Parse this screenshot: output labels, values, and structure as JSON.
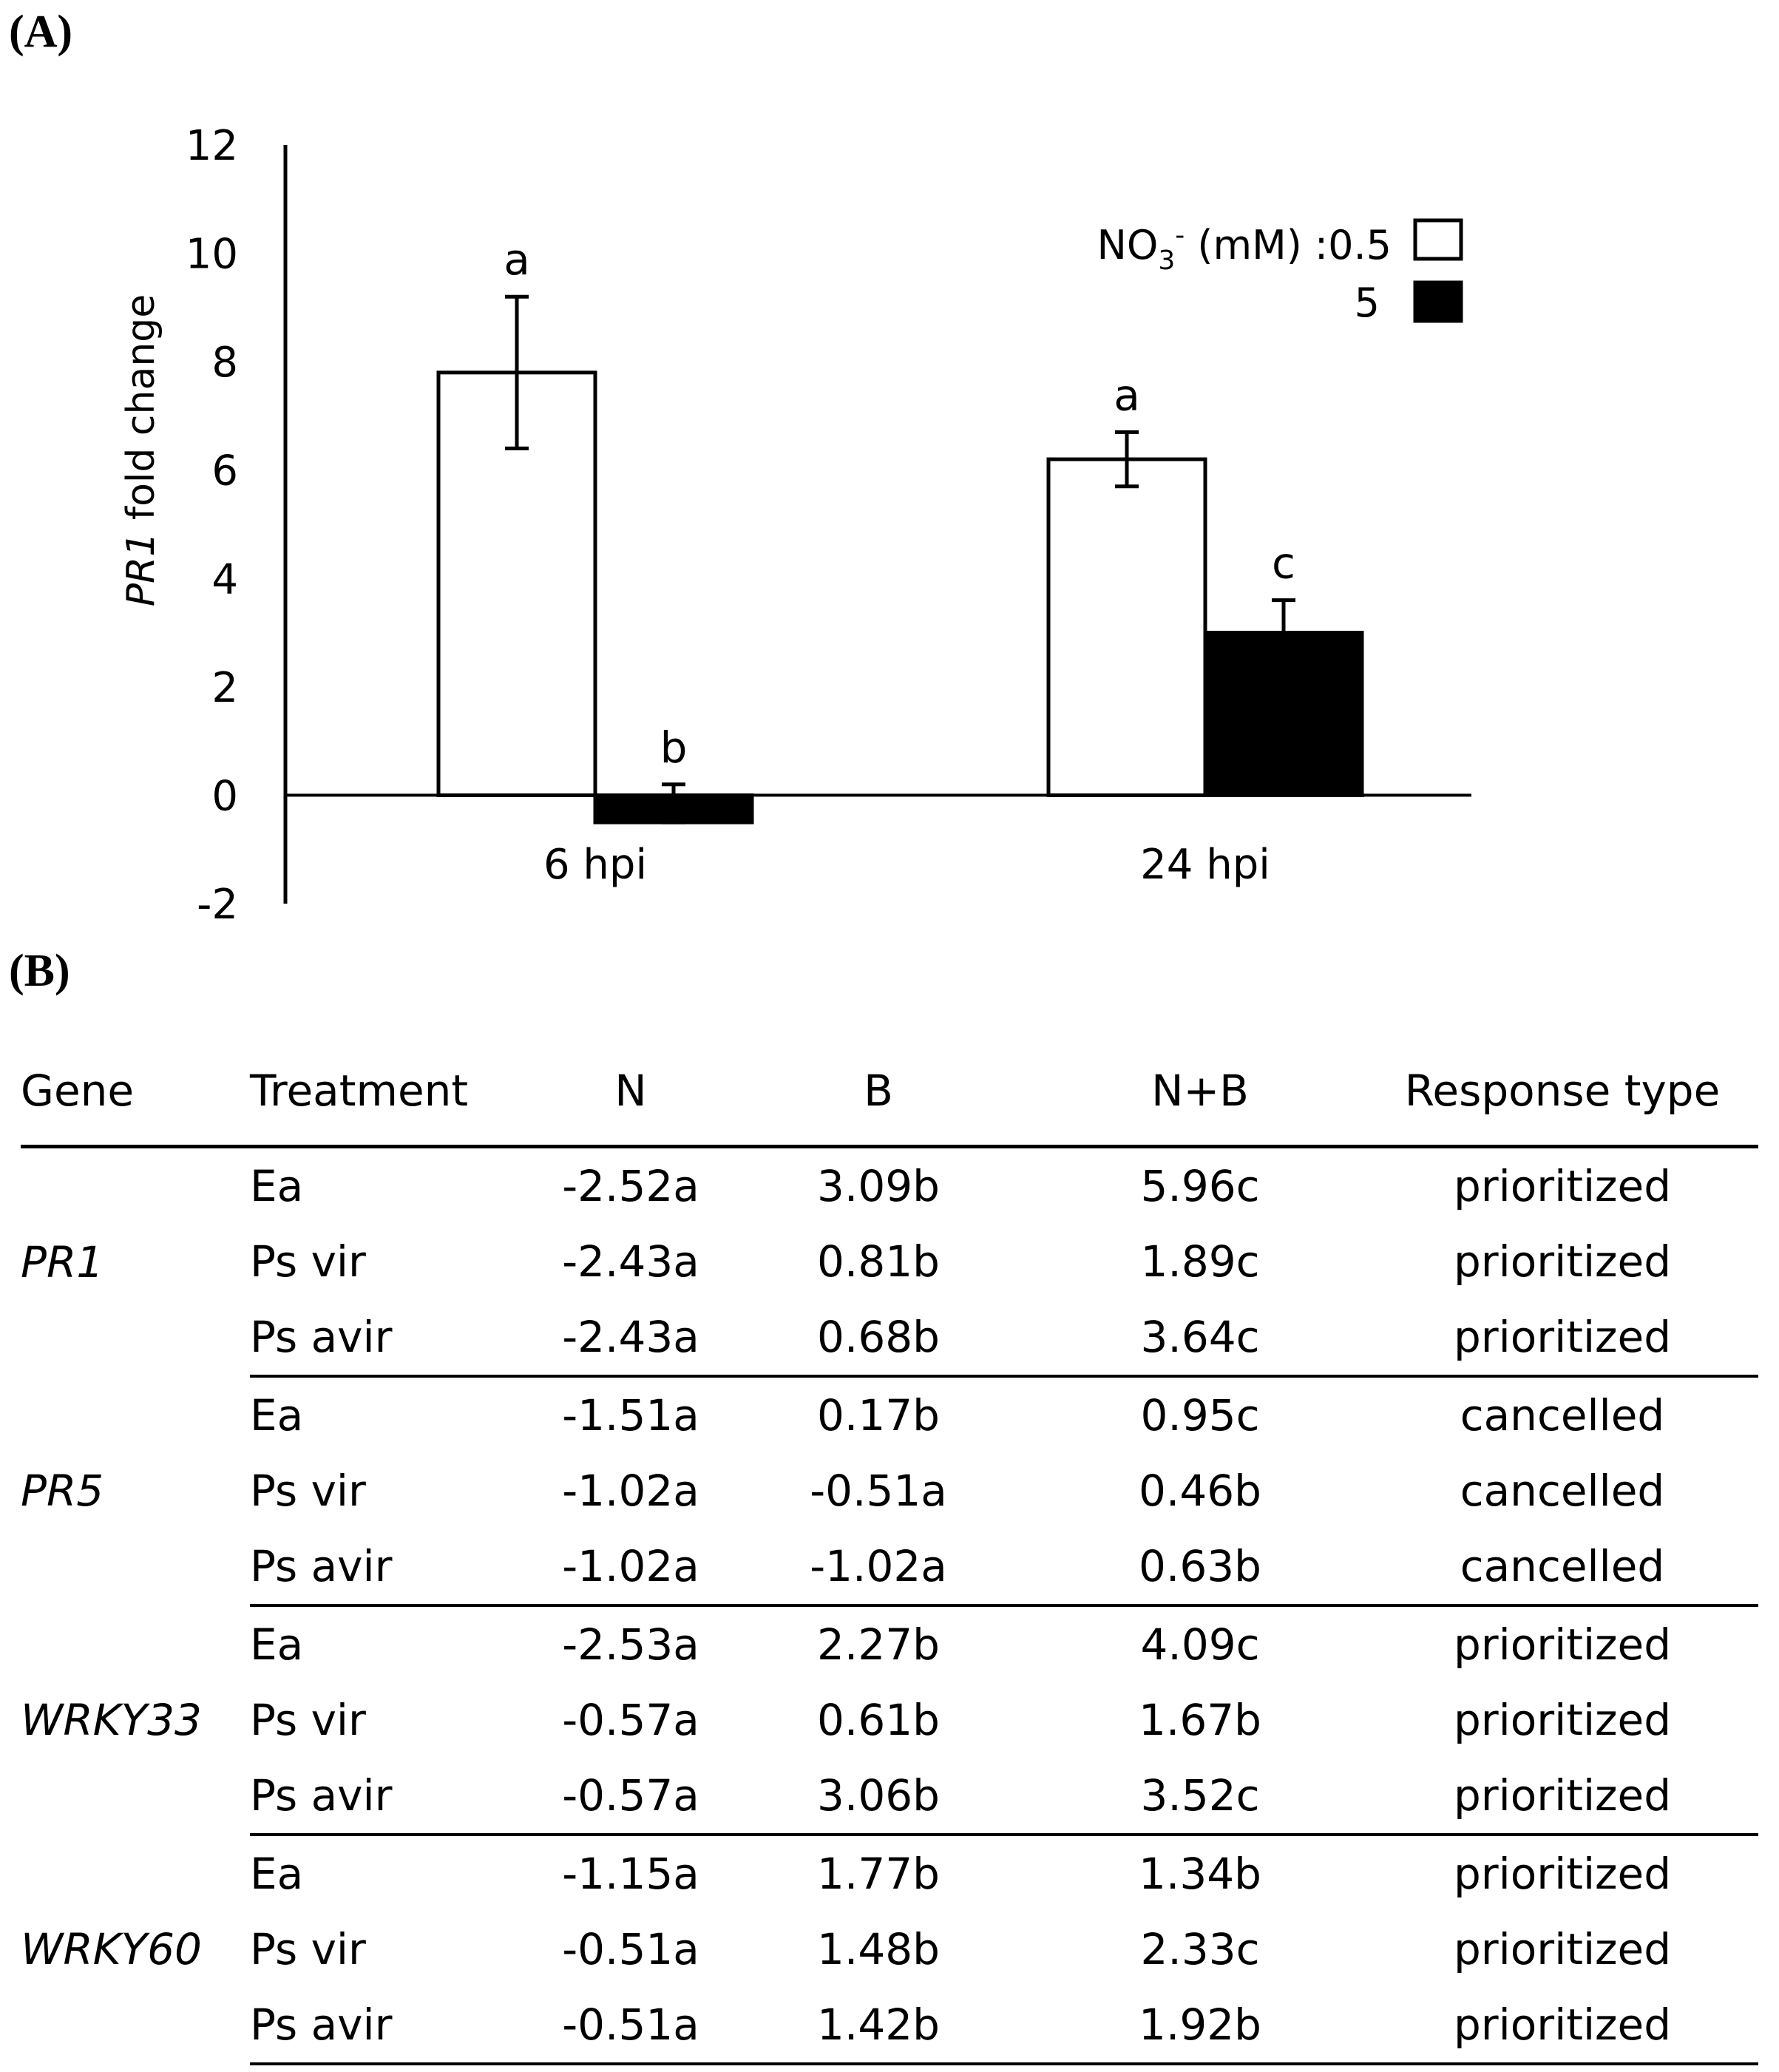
{
  "panel_a_label": "(A)",
  "panel_b_label": "(B)",
  "chart_data": {
    "type": "bar",
    "title": "",
    "ylabel_italic": "PR1",
    "ylabel_rest": " fold change",
    "xlabel": "",
    "ylim": [
      -2,
      12
    ],
    "yticks": [
      -2,
      0,
      2,
      4,
      6,
      8,
      10,
      12
    ],
    "categories": [
      "6 hpi",
      "24 hpi"
    ],
    "legend": {
      "title_prefix": "NO",
      "title_sub": "3",
      "title_sup": "-",
      "title_suffix": " (mM) :0.5",
      "second_label": "5"
    },
    "series": [
      {
        "name": "0.5",
        "color": "#ffffff",
        "values": [
          7.8,
          6.2
        ],
        "errors": [
          1.4,
          0.5
        ],
        "letters": [
          "a",
          "a"
        ]
      },
      {
        "name": "5",
        "color": "#000000",
        "values": [
          -0.5,
          3.0
        ],
        "errors": [
          0.7,
          0.6
        ],
        "letters": [
          "b",
          "c"
        ]
      }
    ]
  },
  "table": {
    "headers": [
      "Gene",
      "Treatment",
      "N",
      "B",
      "N+B",
      "Response type"
    ],
    "groups": [
      {
        "gene": "PR1",
        "rows": [
          [
            "Ea",
            "-2.52a",
            "3.09b",
            "5.96c",
            "prioritized"
          ],
          [
            "Ps vir",
            "-2.43a",
            "0.81b",
            "1.89c",
            "prioritized"
          ],
          [
            "Ps avir",
            "-2.43a",
            "0.68b",
            "3.64c",
            "prioritized"
          ]
        ]
      },
      {
        "gene": "PR5",
        "rows": [
          [
            "Ea",
            "-1.51a",
            "0.17b",
            "0.95c",
            "cancelled"
          ],
          [
            "Ps vir",
            "-1.02a",
            "-0.51a",
            "0.46b",
            "cancelled"
          ],
          [
            "Ps avir",
            "-1.02a",
            "-1.02a",
            "0.63b",
            "cancelled"
          ]
        ]
      },
      {
        "gene": "WRKY33",
        "rows": [
          [
            "Ea",
            "-2.53a",
            "2.27b",
            "4.09c",
            "prioritized"
          ],
          [
            "Ps vir",
            "-0.57a",
            "0.61b",
            "1.67b",
            "prioritized"
          ],
          [
            "Ps avir",
            "-0.57a",
            "3.06b",
            "3.52c",
            "prioritized"
          ]
        ]
      },
      {
        "gene": "WRKY60",
        "rows": [
          [
            "Ea",
            "-1.15a",
            "1.77b",
            "1.34b",
            "prioritized"
          ],
          [
            "Ps vir",
            "-0.51a",
            "1.48b",
            "2.33c",
            "prioritized"
          ],
          [
            "Ps avir",
            "-0.51a",
            "1.42b",
            "1.92b",
            "prioritized"
          ]
        ]
      }
    ]
  }
}
